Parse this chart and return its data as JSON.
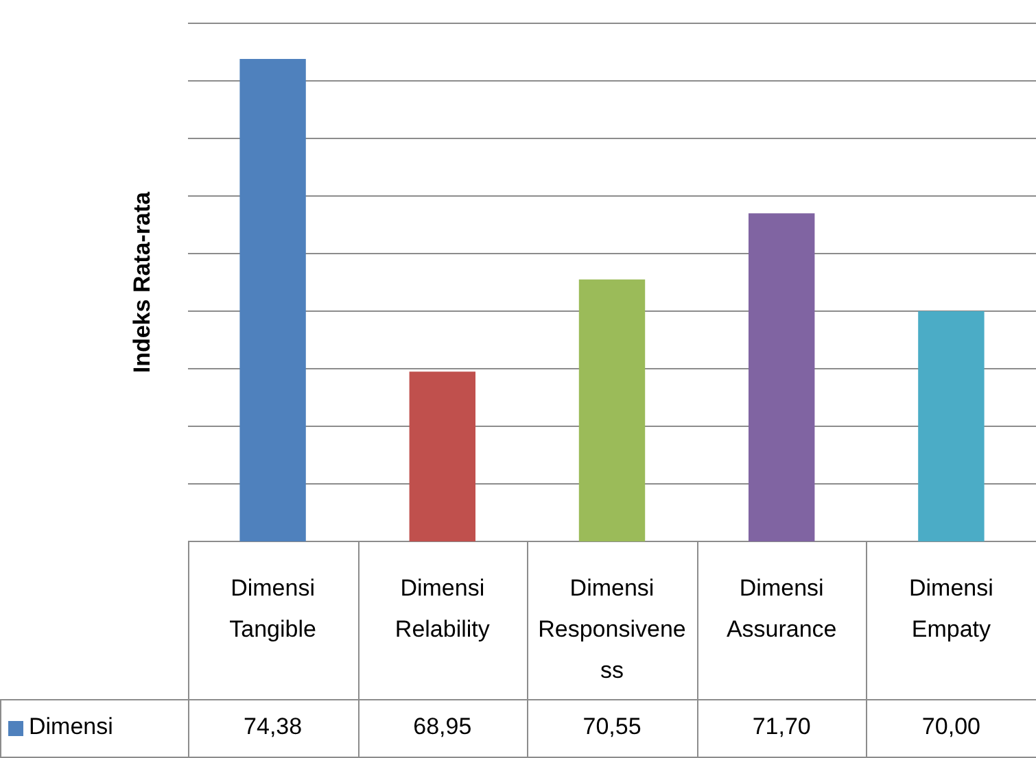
{
  "chart_data": {
    "type": "bar",
    "ylabel": "Indeks Rata-rata",
    "categories": [
      "Dimensi Tangible",
      "Dimensi Relability",
      "Dimensi Responsiveness",
      "Dimensi Assurance",
      "Dimensi Empaty"
    ],
    "series": [
      {
        "name": "Dimensi",
        "values": [
          74.38,
          68.95,
          70.55,
          71.7,
          70.0
        ],
        "colors": [
          "#4f81bd",
          "#c0504d",
          "#9bbb59",
          "#8064a2",
          "#4bacc6"
        ],
        "value_labels": [
          "74,38",
          "68,95",
          "70,55",
          "71,70",
          "70,00"
        ]
      }
    ],
    "ylim": [
      66,
      75
    ],
    "yticks": [
      {
        "value": 66,
        "label": null
      },
      {
        "value": 67,
        "label": null
      },
      {
        "value": 68,
        "label": null
      },
      {
        "value": 69,
        "label": null
      },
      {
        "value": 70,
        "label": null
      },
      {
        "value": 71,
        "label": null
      },
      {
        "value": 72,
        "label": null
      },
      {
        "value": 73,
        "label": null
      },
      {
        "value": 74,
        "label": null
      },
      {
        "value": 75,
        "label": null
      }
    ],
    "grid": "y",
    "legend": "bottom"
  }
}
